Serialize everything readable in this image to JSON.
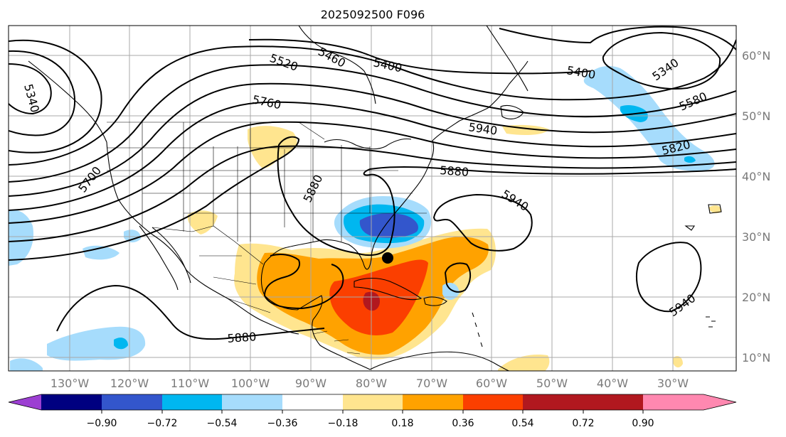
{
  "title": "2025092500 F096",
  "lon_labels": [
    "130°W",
    "120°W",
    "110°W",
    "100°W",
    "90°W",
    "80°W",
    "70°W",
    "60°W",
    "50°W",
    "40°W",
    "30°W"
  ],
  "lat_labels": [
    "60°N",
    "50°N",
    "40°N",
    "30°N",
    "20°N",
    "10°N"
  ],
  "contour_labels": [
    "5520",
    "5460",
    "5400",
    "5400",
    "5340",
    "5340",
    "5760",
    "5940",
    "5880",
    "5580",
    "5820",
    "5700",
    "5880",
    "5940",
    "5940",
    "5880"
  ],
  "colorbar": {
    "colors": [
      "#9c3fd2",
      "#000080",
      "#3356cc",
      "#00b7f0",
      "#a6dcfc",
      "#ffffff",
      "#ffe58f",
      "#ffa200",
      "#fb3f00",
      "#b1181f",
      "#ff88b0"
    ],
    "tick_labels": [
      "−0.90",
      "−0.72",
      "−0.54",
      "−0.36",
      "−0.18",
      "0.18",
      "0.36",
      "0.54",
      "0.72",
      "0.90"
    ]
  },
  "marker": "storm-center-dot"
}
